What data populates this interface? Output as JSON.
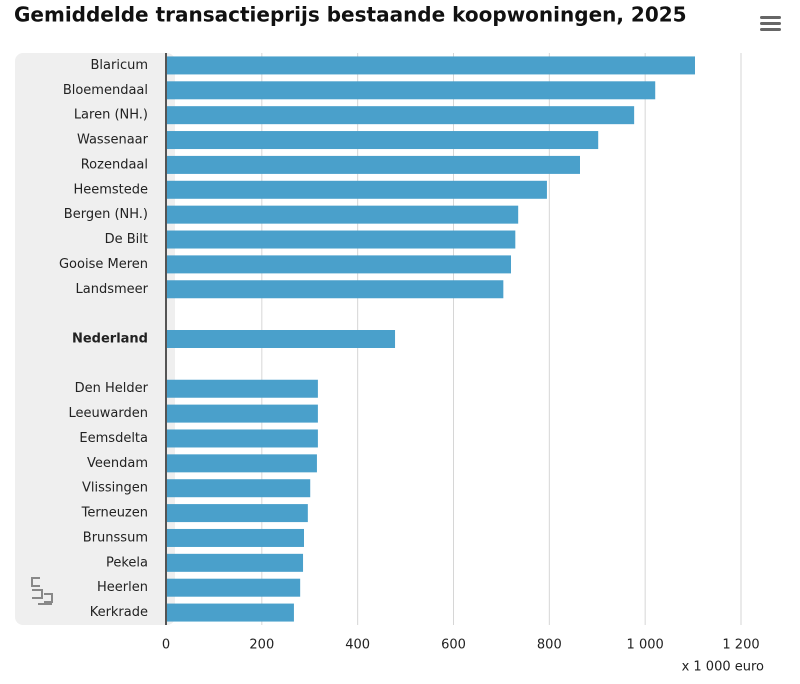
{
  "chart_data": {
    "type": "bar",
    "orientation": "horizontal",
    "title": "Gemiddelde transactieprijs bestaande koopwoningen, 2025",
    "x_label": "x 1 000 euro",
    "categories": [
      "Blaricum",
      "Bloemendaal",
      "Laren (NH.)",
      "Wassenaar",
      "Rozendaal",
      "Heemstede",
      "Bergen (NH.)",
      "De Bilt",
      "Gooise Meren",
      "Landsmeer",
      null,
      "Nederland",
      null,
      "Den Helder",
      "Leeuwarden",
      "Eemsdelta",
      "Veendam",
      "Vlissingen",
      "Terneuzen",
      "Brunssum",
      "Pekela",
      "Heerlen",
      "Kerkrade"
    ],
    "values": [
      1104,
      1021,
      977,
      902,
      864,
      795,
      735,
      729,
      720,
      704,
      null,
      478,
      null,
      317,
      317,
      317,
      315,
      301,
      296,
      288,
      286,
      280,
      267
    ],
    "emphasis": [
      11
    ],
    "color": "#4aa0cb",
    "xlim": [
      0,
      1200
    ],
    "xticks": [
      0,
      200,
      400,
      600,
      800,
      {
        "value": 1000,
        "label": "1 000"
      },
      {
        "value": 1200,
        "label": "1 200"
      }
    ],
    "grid": true
  }
}
